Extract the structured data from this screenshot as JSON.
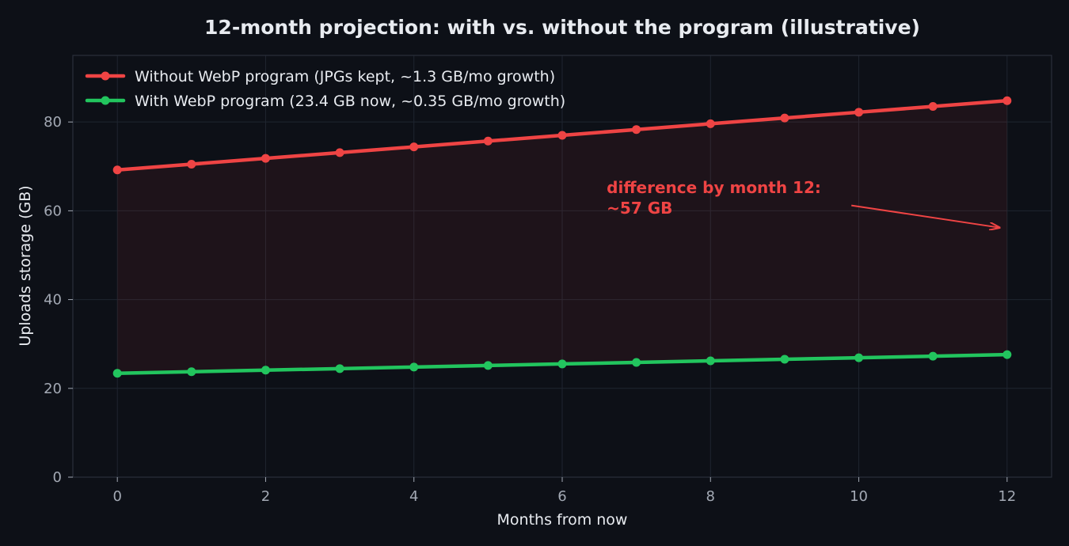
{
  "chart_data": {
    "type": "line",
    "title": "12-month projection: with vs. without the program (illustrative)",
    "xlabel": "Months from now",
    "ylabel": "Uploads storage (GB)",
    "xlim": [
      -0.6,
      12.6
    ],
    "ylim": [
      0,
      95
    ],
    "xticks": [
      0,
      2,
      4,
      6,
      8,
      10,
      12
    ],
    "yticks": [
      0,
      20,
      40,
      60,
      80
    ],
    "grid": true,
    "legend_position": "upper-left",
    "x": [
      0,
      1,
      2,
      3,
      4,
      5,
      6,
      7,
      8,
      9,
      10,
      11,
      12
    ],
    "series": [
      {
        "name": "Without WebP program (JPGs kept, ~1.3 GB/mo growth)",
        "color": "#ef4444",
        "values": [
          69.2,
          70.5,
          71.8,
          73.1,
          74.4,
          75.7,
          77.0,
          78.3,
          79.6,
          80.9,
          82.2,
          83.5,
          84.8
        ]
      },
      {
        "name": "With WebP program (23.4 GB now, ~0.35 GB/mo growth)",
        "color": "#22c55e",
        "values": [
          23.4,
          23.75,
          24.1,
          24.45,
          24.8,
          25.15,
          25.5,
          25.85,
          26.2,
          26.55,
          26.9,
          27.25,
          27.6
        ]
      }
    ],
    "fill_between": {
      "color": "#ef4444",
      "opacity": 0.08
    },
    "annotation": {
      "lines": [
        "difference by month 12:",
        "~57 GB"
      ],
      "color": "#ef4444",
      "text_at": [
        6.6,
        64
      ],
      "arrow_tail": [
        9.9,
        61.2
      ],
      "arrow_head": [
        11.9,
        56.2
      ]
    }
  },
  "colors": {
    "background": "#0d1017",
    "grid": "#1f2530",
    "spine": "#2a303b"
  }
}
